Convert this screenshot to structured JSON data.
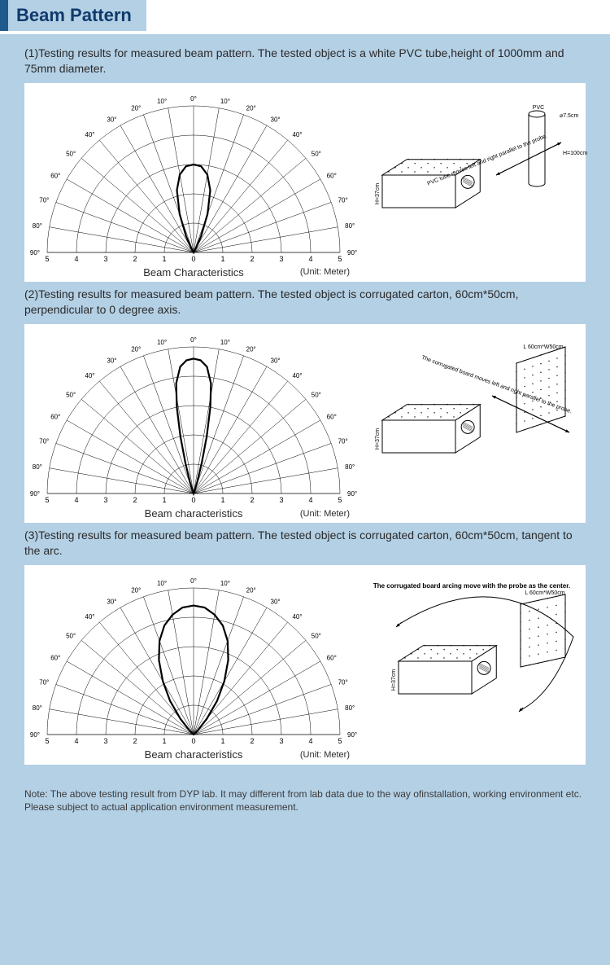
{
  "header": {
    "title": "Beam Pattern"
  },
  "sections": [
    {
      "desc": "(1)Testing results for measured beam pattern. The tested object is a white PVC tube,height of 1000mm and 75mm diameter.",
      "caption": "Beam Characteristics",
      "unit": "(Unit: Meter)"
    },
    {
      "desc": "(2)Testing results for measured beam pattern. The tested object is corrugated carton, 60cm*50cm, perpendicular  to 0 degree axis.",
      "caption": "Beam characteristics",
      "unit": "(Unit: Meter)"
    },
    {
      "desc": "(3)Testing results for measured beam pattern. The tested object is corrugated carton, 60cm*50cm, tangent to the arc.",
      "caption": "Beam characteristics",
      "unit": "(Unit: Meter)"
    }
  ],
  "polar": {
    "angles_deg": [
      0,
      10,
      20,
      30,
      40,
      50,
      60,
      70,
      80,
      90
    ],
    "angle_labels": [
      "0°",
      "10°",
      "20°",
      "30°",
      "40°",
      "50°",
      "60°",
      "70°",
      "80°",
      "90°"
    ],
    "radii": [
      0,
      1,
      2,
      3,
      4,
      5
    ],
    "radial_labels_left": [
      "0",
      "1",
      "2",
      "3",
      "4",
      "5"
    ],
    "radial_labels_right": [
      "0",
      "1",
      "2",
      "3",
      "4",
      "5"
    ],
    "grid_color": "#000000",
    "grid_width": 0.5,
    "lobe_color": "#000000",
    "lobe_width": 2.2,
    "lobes": {
      "1": [
        {
          "a": 0,
          "r": 3.0
        },
        {
          "a": 5,
          "r": 2.95
        },
        {
          "a": 10,
          "r": 2.7
        },
        {
          "a": 15,
          "r": 2.2
        },
        {
          "a": 20,
          "r": 1.4
        },
        {
          "a": 25,
          "r": 0.6
        },
        {
          "a": 28,
          "r": 0.2
        },
        {
          "a": 0,
          "r": 0
        },
        {
          "a": -28,
          "r": 0.2
        },
        {
          "a": -25,
          "r": 0.6
        },
        {
          "a": -20,
          "r": 1.4
        },
        {
          "a": -15,
          "r": 2.2
        },
        {
          "a": -10,
          "r": 2.7
        },
        {
          "a": -5,
          "r": 2.95
        },
        {
          "a": 0,
          "r": 3.0
        }
      ],
      "2": [
        {
          "a": 0,
          "r": 4.6
        },
        {
          "a": 3,
          "r": 4.55
        },
        {
          "a": 6,
          "r": 4.35
        },
        {
          "a": 9,
          "r": 3.8
        },
        {
          "a": 11,
          "r": 3.0
        },
        {
          "a": 13,
          "r": 2.0
        },
        {
          "a": 15,
          "r": 1.1
        },
        {
          "a": 18,
          "r": 0.4
        },
        {
          "a": 20,
          "r": 0.1
        },
        {
          "a": 0,
          "r": 0
        },
        {
          "a": -20,
          "r": 0.1
        },
        {
          "a": -18,
          "r": 0.4
        },
        {
          "a": -15,
          "r": 1.1
        },
        {
          "a": -13,
          "r": 2.0
        },
        {
          "a": -11,
          "r": 3.0
        },
        {
          "a": -9,
          "r": 3.8
        },
        {
          "a": -6,
          "r": 4.35
        },
        {
          "a": -3,
          "r": 4.55
        },
        {
          "a": 0,
          "r": 4.6
        }
      ],
      "3": [
        {
          "a": 0,
          "r": 4.4
        },
        {
          "a": 5,
          "r": 4.35
        },
        {
          "a": 10,
          "r": 4.15
        },
        {
          "a": 15,
          "r": 3.85
        },
        {
          "a": 20,
          "r": 3.4
        },
        {
          "a": 25,
          "r": 2.8
        },
        {
          "a": 30,
          "r": 2.1
        },
        {
          "a": 35,
          "r": 1.4
        },
        {
          "a": 40,
          "r": 0.7
        },
        {
          "a": 45,
          "r": 0.2
        },
        {
          "a": 0,
          "r": 0
        },
        {
          "a": -45,
          "r": 0.2
        },
        {
          "a": -40,
          "r": 0.7
        },
        {
          "a": -35,
          "r": 1.4
        },
        {
          "a": -30,
          "r": 2.1
        },
        {
          "a": -25,
          "r": 2.8
        },
        {
          "a": -20,
          "r": 3.4
        },
        {
          "a": -15,
          "r": 3.85
        },
        {
          "a": -10,
          "r": 4.15
        },
        {
          "a": -5,
          "r": 4.35
        },
        {
          "a": 0,
          "r": 4.4
        }
      ]
    }
  },
  "setups": {
    "pvc": {
      "label_pvc": "PVC",
      "label_diam": "⌀7.5cm",
      "label_h": "H=100cm",
      "label_sensor_h": "H=37cm",
      "arrow_text": "PVC tube moves left and right parallel to the probe."
    },
    "carton_perp": {
      "label_dim": "L 60cm*W50cm",
      "label_sensor_h": "H=37cm",
      "arrow_text": "The corrugated board moves left and right parallel to the probe."
    },
    "carton_arc": {
      "label_dim": "L 60cm*W50cm",
      "label_sensor_h": "H=37cm",
      "arrow_text": "The corrugated board arcing move with the probe as the center."
    }
  },
  "note": "Note: The above testing result from DYP lab.  It may different from lab data due to the way ofinstallation, working environment etc. Please subject to actual application environment measurement.",
  "colors": {
    "page_bg": "#b4d0e5",
    "panel_bg": "#ffffff",
    "title_accent": "#1f5a8a",
    "title_text": "#103a6b"
  }
}
